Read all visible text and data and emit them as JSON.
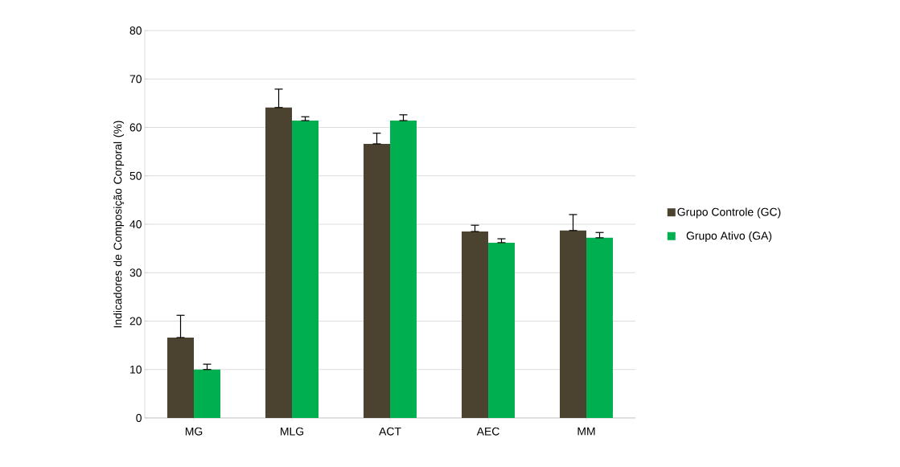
{
  "chart_data": {
    "type": "bar",
    "ylabel": "Indicadores de Composição Corporal (%)",
    "categories": [
      "MG",
      "MLG",
      "ACT",
      "AEC",
      "MM"
    ],
    "series": [
      {
        "name": "Grupo Controle (GC)",
        "color": "#4b4330",
        "values": [
          16.6,
          64.1,
          56.6,
          38.5,
          38.7
        ],
        "errors": [
          [
            16.6,
            21.2
          ],
          [
            64.1,
            67.9
          ],
          [
            56.6,
            58.8
          ],
          [
            38.5,
            39.8
          ],
          [
            38.7,
            42.0
          ]
        ]
      },
      {
        "name": "Grupo Ativo (GA)",
        "color": "#00b050",
        "values": [
          10.0,
          61.4,
          61.4,
          36.2,
          37.2
        ],
        "errors": [
          [
            10.0,
            11.1
          ],
          [
            61.4,
            62.2
          ],
          [
            61.4,
            62.6
          ],
          [
            36.2,
            37.0
          ],
          [
            37.2,
            38.3
          ]
        ]
      }
    ],
    "ylim": [
      0,
      80
    ],
    "yticks": [
      0,
      10,
      20,
      30,
      40,
      50,
      60,
      70,
      80
    ],
    "grid": "y",
    "legend": "right"
  }
}
